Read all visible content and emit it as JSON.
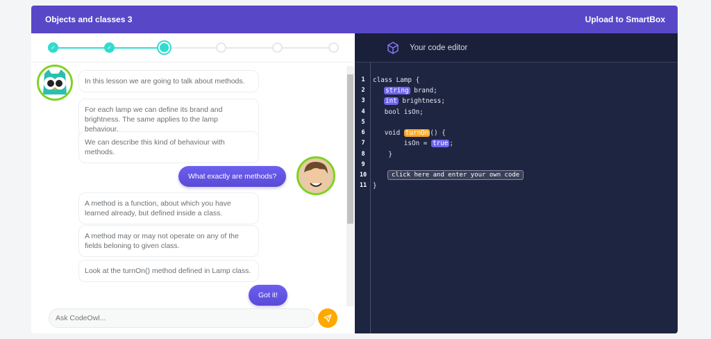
{
  "header": {
    "title": "Objects and classes 3",
    "upload_label": "Upload to SmartBox"
  },
  "progress": {
    "total_steps": 6,
    "completed_steps": 2,
    "current_step": 3,
    "accent": "#2fdcd0"
  },
  "chat": {
    "messages": [
      {
        "from": "owl",
        "text": "In this lesson we are going to talk about methods."
      },
      {
        "from": "owl",
        "text": "For each lamp we can define its brand and brightness. The same applies to the lamp behaviour."
      },
      {
        "from": "owl",
        "text": "We can describe this kind of behaviour with methods."
      },
      {
        "from": "user",
        "text": "What exactly are methods?"
      },
      {
        "from": "owl",
        "text": "A method is a function, about which you have learned already, but defined inside a class."
      },
      {
        "from": "owl",
        "text": "A method may or may not operate on any of the fields beloning to given class."
      },
      {
        "from": "owl",
        "text": "Look at the turnOn() method defined in Lamp class."
      }
    ],
    "reply_button": "Got it!",
    "input_placeholder": "Ask CodeOwl...",
    "send_icon": "paper-plane-icon"
  },
  "editor": {
    "title": "Your code editor",
    "icon": "cube-icon",
    "line_numbers": [
      "1",
      "2",
      "3",
      "4",
      "5",
      "6",
      "7",
      "8",
      "9",
      "10",
      "11"
    ],
    "code": {
      "l1": "class Lamp {",
      "l2a": "string",
      "l2b": " brand;",
      "l3a": "int",
      "l3b": " brightness;",
      "l4": "   bool isOn;",
      "l6a": "   void ",
      "l6b": "turnOn",
      "l6c": "() {",
      "l7a": "        isOn = ",
      "l7b": "true",
      "l7c": ";",
      "l8": "    }",
      "l10": "click here and enter your own code",
      "l11": "}"
    }
  },
  "colors": {
    "header": "#5848c8",
    "editor_bg": "#1e2541",
    "send": "#ffa800",
    "highlight": "#6f63f0",
    "function_highlight": "#ffa726"
  }
}
